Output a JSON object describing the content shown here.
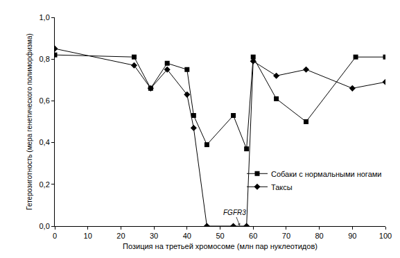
{
  "chart_data": {
    "type": "line",
    "x_label": "Позиция на третьей хромосоме (млн пар нуклеотидов)",
    "y_label": "Гетерозиготность (мера генетического полиморфизма)",
    "xlim": [
      0,
      100
    ],
    "xticks": [
      0,
      10,
      20,
      30,
      40,
      50,
      60,
      70,
      80,
      90,
      100
    ],
    "ylim": [
      0,
      1
    ],
    "yticks": [
      {
        "value": 0,
        "label": "0,0"
      },
      {
        "value": 0.2,
        "label": "0,2"
      },
      {
        "value": 0.4,
        "label": "0,4"
      },
      {
        "value": 0.6,
        "label": "0,6"
      },
      {
        "value": 0.8,
        "label": "0,8"
      },
      {
        "value": 1,
        "label": "1,0"
      }
    ],
    "grid": false,
    "legend": "right",
    "series": [
      {
        "name": "Собаки с нормальными ногами",
        "color": "#000000",
        "marker": "square",
        "x": [
          0,
          24,
          29,
          34,
          40,
          42,
          46,
          54,
          58,
          60,
          67,
          76,
          91,
          100
        ],
        "values": [
          0.82,
          0.81,
          0.66,
          0.78,
          0.75,
          0.53,
          0.39,
          0.53,
          0.37,
          0.81,
          0.61,
          0.5,
          0.81,
          0.81
        ]
      },
      {
        "name": "Таксы",
        "color": "#000000",
        "marker": "diamond",
        "x": [
          0,
          24,
          29,
          34,
          40,
          42,
          46,
          54,
          58,
          60,
          67,
          76,
          90,
          100
        ],
        "values": [
          0.85,
          0.77,
          0.66,
          0.75,
          0.63,
          0.47,
          0,
          0,
          0,
          0.79,
          0.72,
          0.75,
          0.66,
          0.69
        ]
      }
    ],
    "annotations": [
      {
        "text": "FGFR3",
        "x": 56,
        "y": 0
      }
    ]
  }
}
